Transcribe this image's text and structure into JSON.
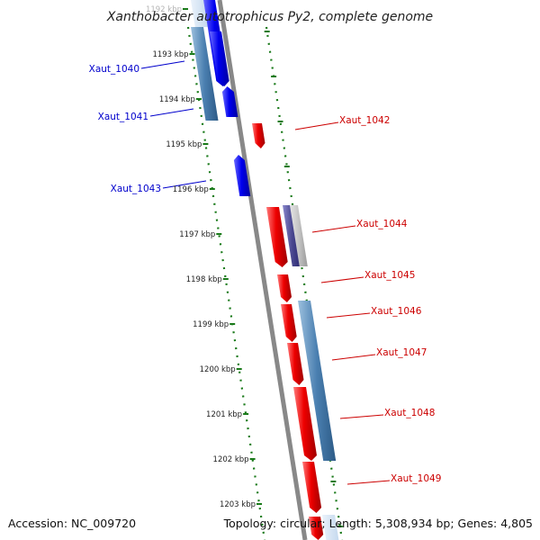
{
  "title": "Xanthobacter autotrophicus Py2, complete genome",
  "footer": {
    "accession": "Accession: NC_009720",
    "topology": "Topology: circular; Length: 5,308,934 bp; Genes: 4,805"
  },
  "colors": {
    "forward_gene": "#ee0000",
    "reverse_gene": "#0000ee",
    "cds_band": "#4a7fb0",
    "backbone": "#888888",
    "ticks": "#1a7a1a",
    "forward_label": "#cc0000",
    "reverse_label": "#0000cc"
  },
  "kbp_labels": [
    "1192 kbp",
    "1193 kbp",
    "1194 kbp",
    "1195 kbp",
    "1196 kbp",
    "1197 kbp",
    "1198 kbp",
    "1199 kbp",
    "1200 kbp",
    "1201 kbp",
    "1202 kbp",
    "1203 kbp"
  ],
  "gene_labels": {
    "reverse": [
      "Xaut_1040",
      "Xaut_1041",
      "Xaut_1043"
    ],
    "forward": [
      "Xaut_1042",
      "Xaut_1044",
      "Xaut_1045",
      "Xaut_1046",
      "Xaut_1047",
      "Xaut_1048",
      "Xaut_1049"
    ]
  }
}
